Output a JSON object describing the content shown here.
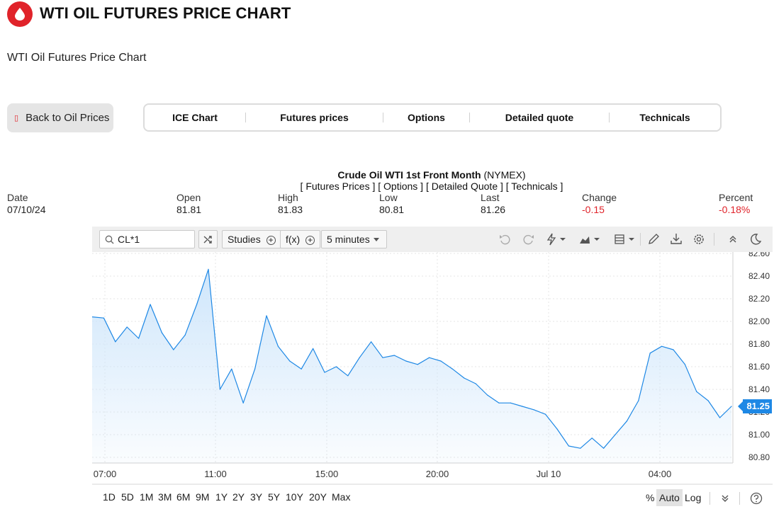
{
  "header": {
    "title": "WTI OIL FUTURES PRICE CHART",
    "subtitle": "WTI Oil Futures Price Chart"
  },
  "nav": {
    "back_label": "Back to Oil Prices",
    "back_icon": "square-icon",
    "tabs": [
      {
        "label": "ICE Chart"
      },
      {
        "label": "Futures prices"
      },
      {
        "label": "Options"
      },
      {
        "label": "Detailed quote"
      },
      {
        "label": "Technicals"
      }
    ]
  },
  "quote": {
    "name": "Crude Oil WTI 1st Front Month",
    "exchange": "(NYMEX)",
    "links": "[ Futures Prices ] [ Options ] [ Detailed Quote ] [ Technicals ]",
    "fields": [
      {
        "label": "Date",
        "value": "07/10/24"
      },
      {
        "label": "Open",
        "value": "81.81"
      },
      {
        "label": "High",
        "value": "81.83"
      },
      {
        "label": "Low",
        "value": "80.81"
      },
      {
        "label": "Last",
        "value": "81.26"
      },
      {
        "label": "Change",
        "value": "-0.15"
      },
      {
        "label": "Percent",
        "value": "-0.18%"
      }
    ],
    "negative_color": "#e0232a"
  },
  "toolbar": {
    "symbol": "CL*1",
    "studies_label": "Studies",
    "fx_label": "f(x)",
    "interval": "5 minutes",
    "icons": [
      "shuffle-icon",
      "plus-circle-icon",
      "undo-icon",
      "redo-icon",
      "lightning-icon",
      "area-chart-icon",
      "layout-icon",
      "pencil-icon",
      "download-icon",
      "gear-icon",
      "collapse-icon",
      "moon-icon"
    ]
  },
  "range_bar": {
    "ranges": [
      "1D",
      "5D",
      "1M",
      "3M",
      "6M",
      "9M",
      "1Y",
      "2Y",
      "3Y",
      "5Y",
      "10Y",
      "20Y",
      "Max"
    ],
    "scale_percent": "%",
    "scale_auto": "Auto",
    "scale_log": "Log",
    "active_scale": "Auto"
  },
  "chart_data": {
    "type": "area",
    "symbol": "CL*1",
    "interval": "5 minutes",
    "line_color": "#1e88e5",
    "fill_color": "#cfe6fb",
    "last_value": "81.25",
    "ylim": [
      80.75,
      82.6
    ],
    "y_ticks": [
      "82.60",
      "82.40",
      "82.20",
      "82.00",
      "81.80",
      "81.60",
      "81.40",
      "81.20",
      "81.00",
      "80.80"
    ],
    "x_ticks": [
      "07:00",
      "11:00",
      "15:00",
      "20:00",
      "Jul 10",
      "04:00"
    ],
    "grid": true,
    "y_axis_side": "right",
    "series": [
      {
        "values": [
          82.04,
          82.03,
          81.82,
          81.95,
          81.85,
          82.15,
          81.9,
          81.75,
          81.88,
          82.15,
          82.46,
          81.4,
          81.58,
          81.28,
          81.58,
          82.05,
          81.78,
          81.65,
          81.58,
          81.76,
          81.55,
          81.6,
          81.52,
          81.68,
          81.82,
          81.68,
          81.7,
          81.65,
          81.62,
          81.68,
          81.65,
          81.58,
          81.5,
          81.45,
          81.35,
          81.28,
          81.28,
          81.25,
          81.22,
          81.18,
          81.05,
          80.9,
          80.88,
          80.97,
          80.88,
          81.0,
          81.12,
          81.3,
          81.72,
          81.78,
          81.75,
          81.62,
          81.38,
          81.3,
          81.15,
          81.25
        ]
      }
    ]
  }
}
